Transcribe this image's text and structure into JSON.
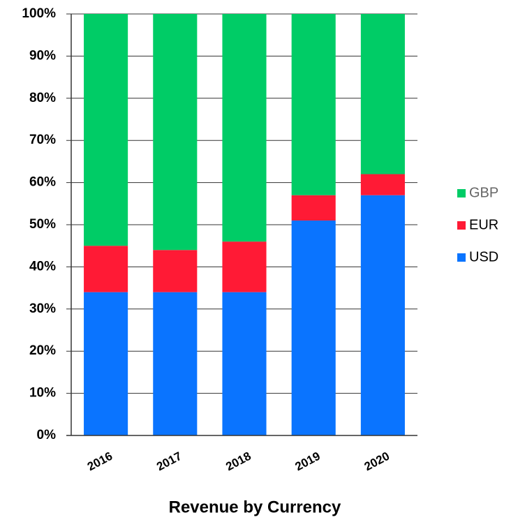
{
  "chart_data": {
    "type": "stacked_bar",
    "title": "Revenue by Currency",
    "categories": [
      "2016",
      "2017",
      "2018",
      "2019",
      "2020"
    ],
    "series": [
      {
        "name": "USD",
        "color": "#0a74ff",
        "values": [
          34,
          34,
          34,
          51,
          57
        ]
      },
      {
        "name": "EUR",
        "color": "#ff1a35",
        "values": [
          11,
          10,
          12,
          6,
          5
        ]
      },
      {
        "name": "GBP",
        "color": "#00cc66",
        "values": [
          55,
          56,
          54,
          43,
          38
        ]
      }
    ],
    "ylim": [
      0,
      100
    ],
    "yticks": [
      {
        "value": 0,
        "label": "0%"
      },
      {
        "value": 10,
        "label": "10%"
      },
      {
        "value": 20,
        "label": "20%"
      },
      {
        "value": 30,
        "label": "30%"
      },
      {
        "value": 40,
        "label": "40%"
      },
      {
        "value": 50,
        "label": "50%"
      },
      {
        "value": 60,
        "label": "60%"
      },
      {
        "value": 70,
        "label": "70%"
      },
      {
        "value": 80,
        "label": "80%"
      },
      {
        "value": 90,
        "label": "90%"
      },
      {
        "value": 100,
        "label": "100%"
      }
    ],
    "grid": true,
    "legend": "right"
  }
}
